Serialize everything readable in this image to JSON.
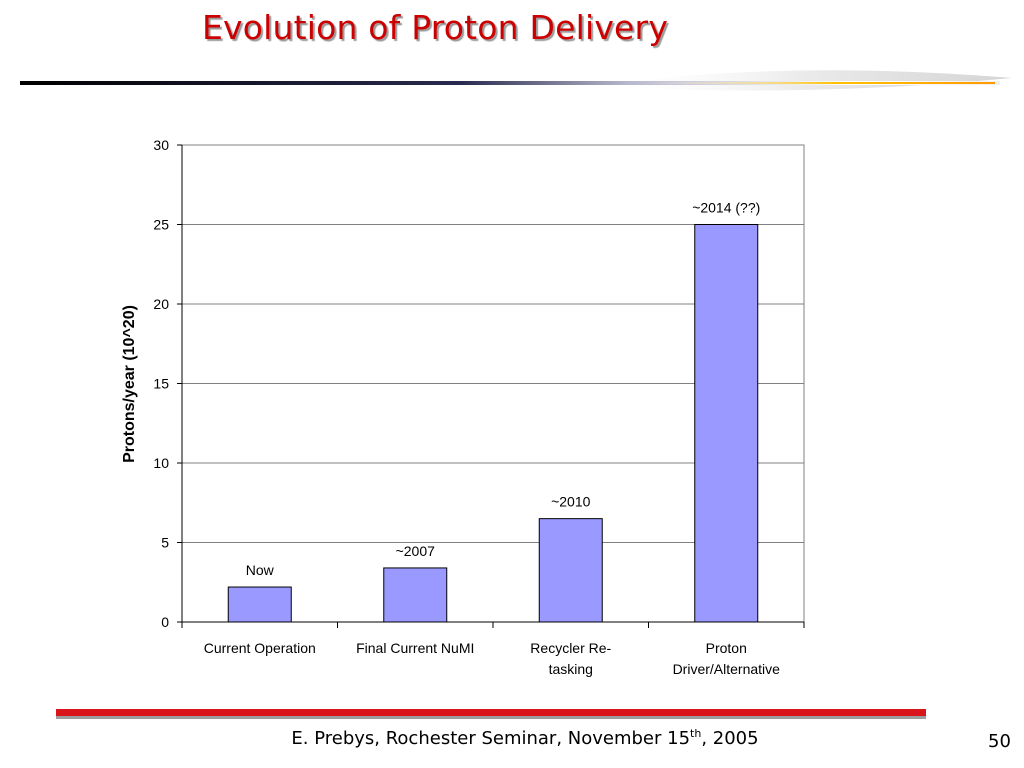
{
  "slide": {
    "title": "Evolution of Proton Delivery",
    "footer_main": "E. Prebys, Rochester Seminar, November 15",
    "footer_sup": "th",
    "footer_tail": ", 2005",
    "page_number": "50"
  },
  "colors": {
    "title": "#cc0000",
    "bar_fill": "#9999ff",
    "bar_stroke": "#000000",
    "footer_bar": "#d9141b"
  },
  "chart_data": {
    "type": "bar",
    "title": "",
    "xlabel": "",
    "ylabel": "Protons/year (10^20)",
    "ylim": [
      0,
      30
    ],
    "yticks": [
      "0",
      "5",
      "10",
      "15",
      "20",
      "25",
      "30"
    ],
    "grid": true,
    "legend": "none",
    "categories": [
      [
        "Current Operation"
      ],
      [
        "Final Current NuMI"
      ],
      [
        "Recycler Re-",
        "tasking"
      ],
      [
        "Proton",
        "Driver/Alternative"
      ]
    ],
    "values": [
      2.2,
      3.4,
      6.5,
      25
    ],
    "bar_labels": [
      "Now",
      "~2007",
      "~2010",
      "~2014 (??)"
    ]
  }
}
